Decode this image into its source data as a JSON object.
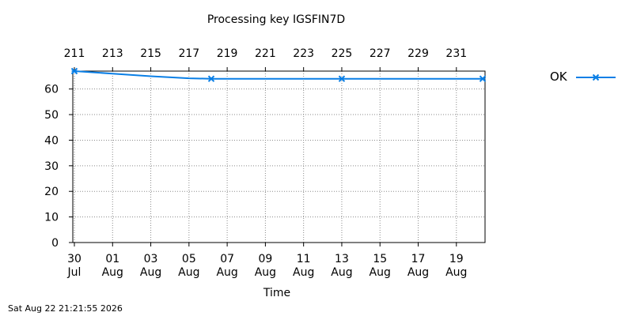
{
  "chart_data": {
    "type": "line",
    "title": "Processing key IGSFIN7D",
    "xlabel": "Time",
    "ylabel": "",
    "ylim": [
      0,
      67
    ],
    "yticks": [
      0,
      10,
      20,
      30,
      40,
      50,
      60
    ],
    "grid": true,
    "legend_position": "right",
    "x_axis_bottom": {
      "ticks": [
        {
          "date": "2026-07-30",
          "day": "30",
          "month": "Jul"
        },
        {
          "date": "2026-08-01",
          "day": "01",
          "month": "Aug"
        },
        {
          "date": "2026-08-03",
          "day": "03",
          "month": "Aug"
        },
        {
          "date": "2026-08-05",
          "day": "05",
          "month": "Aug"
        },
        {
          "date": "2026-08-07",
          "day": "07",
          "month": "Aug"
        },
        {
          "date": "2026-08-09",
          "day": "09",
          "month": "Aug"
        },
        {
          "date": "2026-08-11",
          "day": "11",
          "month": "Aug"
        },
        {
          "date": "2026-08-13",
          "day": "13",
          "month": "Aug"
        },
        {
          "date": "2026-08-15",
          "day": "15",
          "month": "Aug"
        },
        {
          "date": "2026-08-17",
          "day": "17",
          "month": "Aug"
        },
        {
          "date": "2026-08-19",
          "day": "19",
          "month": "Aug"
        }
      ],
      "xlim": [
        "2026-07-30",
        "2026-08-20T12:00"
      ]
    },
    "x_axis_top": {
      "ticks": [
        "211",
        "213",
        "215",
        "217",
        "219",
        "221",
        "223",
        "225",
        "227",
        "229",
        "231"
      ]
    },
    "series": [
      {
        "name": "OK",
        "color": "#0a7fe6",
        "line": [
          {
            "x": "2026-07-30",
            "y": 67
          },
          {
            "x": "2026-08-01",
            "y": 66
          },
          {
            "x": "2026-08-03",
            "y": 65
          },
          {
            "x": "2026-08-05",
            "y": 64.2
          },
          {
            "x": "2026-08-06T04:00",
            "y": 64
          },
          {
            "x": "2026-08-13",
            "y": 64
          },
          {
            "x": "2026-08-20T09:00",
            "y": 64
          }
        ],
        "markers": [
          {
            "x": "2026-07-30",
            "y": 67
          },
          {
            "x": "2026-08-06T04:00",
            "y": 64
          },
          {
            "x": "2026-08-13",
            "y": 64
          },
          {
            "x": "2026-08-20T09:00",
            "y": 64
          }
        ]
      }
    ]
  },
  "footer": {
    "timestamp": "Sat Aug 22 21:21:55 2026"
  }
}
